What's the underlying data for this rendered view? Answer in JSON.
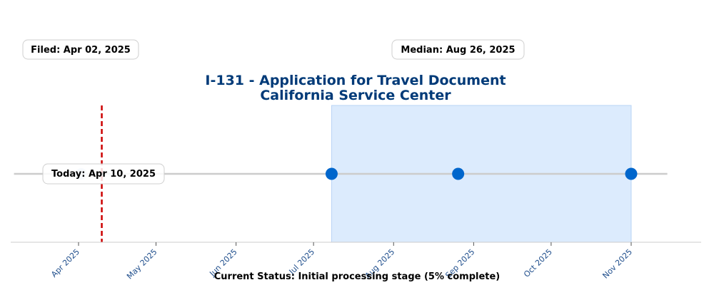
{
  "chart_data": {
    "type": "timeline",
    "title_lines": [
      "I-131 - Application for Travel Document",
      "California Service Center"
    ],
    "x_range": [
      "2025-03-05",
      "2025-11-25"
    ],
    "ticks": [
      {
        "date": "2025-04-01",
        "label": "Apr 2025"
      },
      {
        "date": "2025-05-01",
        "label": "May 2025"
      },
      {
        "date": "2025-06-01",
        "label": "Jun 2025"
      },
      {
        "date": "2025-07-01",
        "label": "Jul 2025"
      },
      {
        "date": "2025-08-01",
        "label": "Aug 2025"
      },
      {
        "date": "2025-09-01",
        "label": "Sep 2025"
      },
      {
        "date": "2025-10-01",
        "label": "Oct 2025"
      },
      {
        "date": "2025-11-01",
        "label": "Nov 2025"
      }
    ],
    "filed_date": "2025-04-02",
    "today_date": "2025-04-10",
    "processing_range": [
      "2025-07-08",
      "2025-11-01"
    ],
    "points": [
      {
        "date": "2025-04-02",
        "role": "filed"
      },
      {
        "date": "2025-07-08",
        "role": "range-start"
      },
      {
        "date": "2025-08-26",
        "role": "median"
      },
      {
        "date": "2025-11-01",
        "role": "range-end"
      }
    ],
    "annotations": {
      "filed": "Filed: Apr 02, 2025",
      "median": "Median: Aug 26, 2025",
      "today": "Today: Apr 10, 2025"
    },
    "status": "Current Status: Initial processing stage (5% complete)",
    "progress_percent": 5,
    "colors": {
      "title": "#003a78",
      "band": "#dcebfd",
      "band_edge": "#b9d4f5",
      "today_line": "#cc0000",
      "point": "#0066cc",
      "filed_point": "#c7ddf2",
      "track": "#cccccc",
      "tick_label": "#1f4e8c"
    }
  }
}
